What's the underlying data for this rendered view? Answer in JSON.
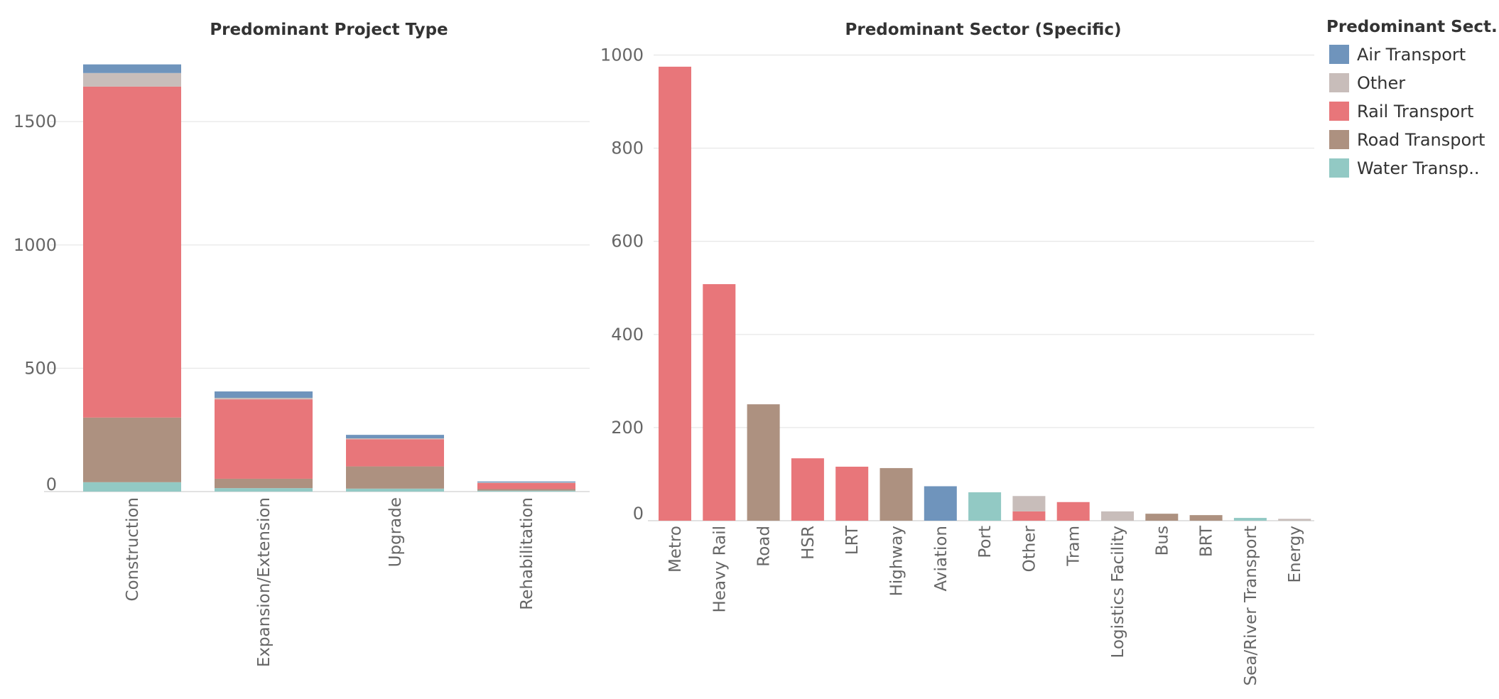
{
  "colors": {
    "Air Transport": "#6f94bc",
    "Other": "#c8bdba",
    "Rail Transport": "#e8767a",
    "Road Transport": "#ad9180",
    "Water Transport": "#92c9c4"
  },
  "legend": {
    "title": "Predominant Sect..",
    "items": [
      {
        "key": "Air Transport",
        "label": "Air Transport"
      },
      {
        "key": "Other",
        "label": "Other"
      },
      {
        "key": "Rail Transport",
        "label": "Rail Transport"
      },
      {
        "key": "Road Transport",
        "label": "Road Transport"
      },
      {
        "key": "Water Transport",
        "label": "Water Transp.."
      }
    ]
  },
  "chart_data": [
    {
      "type": "bar",
      "stacked": true,
      "title": "Predominant Project Type",
      "xlabel": "",
      "ylabel": "",
      "ylim": [
        0,
        1800
      ],
      "yticks": [
        0,
        500,
        1000,
        1500
      ],
      "grid": true,
      "categories": [
        "Construction",
        "Expansion/Extension",
        "Upgrade",
        "Rehabilitation"
      ],
      "series": [
        {
          "name": "Water Transport",
          "values": [
            38,
            14,
            12,
            4
          ]
        },
        {
          "name": "Road Transport",
          "values": [
            262,
            38,
            90,
            6
          ]
        },
        {
          "name": "Rail Transport",
          "values": [
            1342,
            322,
            110,
            25
          ]
        },
        {
          "name": "Other",
          "values": [
            55,
            6,
            4,
            2
          ]
        },
        {
          "name": "Air Transport",
          "values": [
            35,
            26,
            14,
            4
          ]
        }
      ]
    },
    {
      "type": "bar",
      "stacked": true,
      "title": "Predominant Sector (Specific)",
      "xlabel": "",
      "ylabel": "",
      "ylim": [
        0,
        1000
      ],
      "yticks": [
        0,
        200,
        400,
        600,
        800,
        1000
      ],
      "grid": true,
      "categories": [
        "Metro",
        "Heavy Rail",
        "Road",
        "HSR",
        "LRT",
        "Highway",
        "Aviation",
        "Port",
        "Other",
        "Tram",
        "Logistics Facility",
        "Bus",
        "BRT",
        "Sea/River Transport",
        "Energy"
      ],
      "series": [
        {
          "name": "Air Transport",
          "values": [
            0,
            0,
            0,
            0,
            0,
            0,
            74,
            0,
            0,
            0,
            0,
            0,
            0,
            0,
            0
          ]
        },
        {
          "name": "Water Transport",
          "values": [
            0,
            0,
            0,
            0,
            0,
            0,
            0,
            61,
            0,
            0,
            0,
            0,
            0,
            6,
            0
          ]
        },
        {
          "name": "Rail Transport",
          "values": [
            975,
            508,
            0,
            134,
            116,
            0,
            0,
            0,
            20,
            40,
            0,
            0,
            0,
            0,
            0
          ]
        },
        {
          "name": "Road Transport",
          "values": [
            0,
            0,
            250,
            0,
            0,
            113,
            0,
            0,
            0,
            0,
            0,
            15,
            12,
            0,
            0
          ]
        },
        {
          "name": "Other",
          "values": [
            0,
            0,
            0,
            0,
            0,
            0,
            0,
            0,
            33,
            0,
            20,
            0,
            0,
            0,
            4
          ]
        }
      ]
    }
  ]
}
